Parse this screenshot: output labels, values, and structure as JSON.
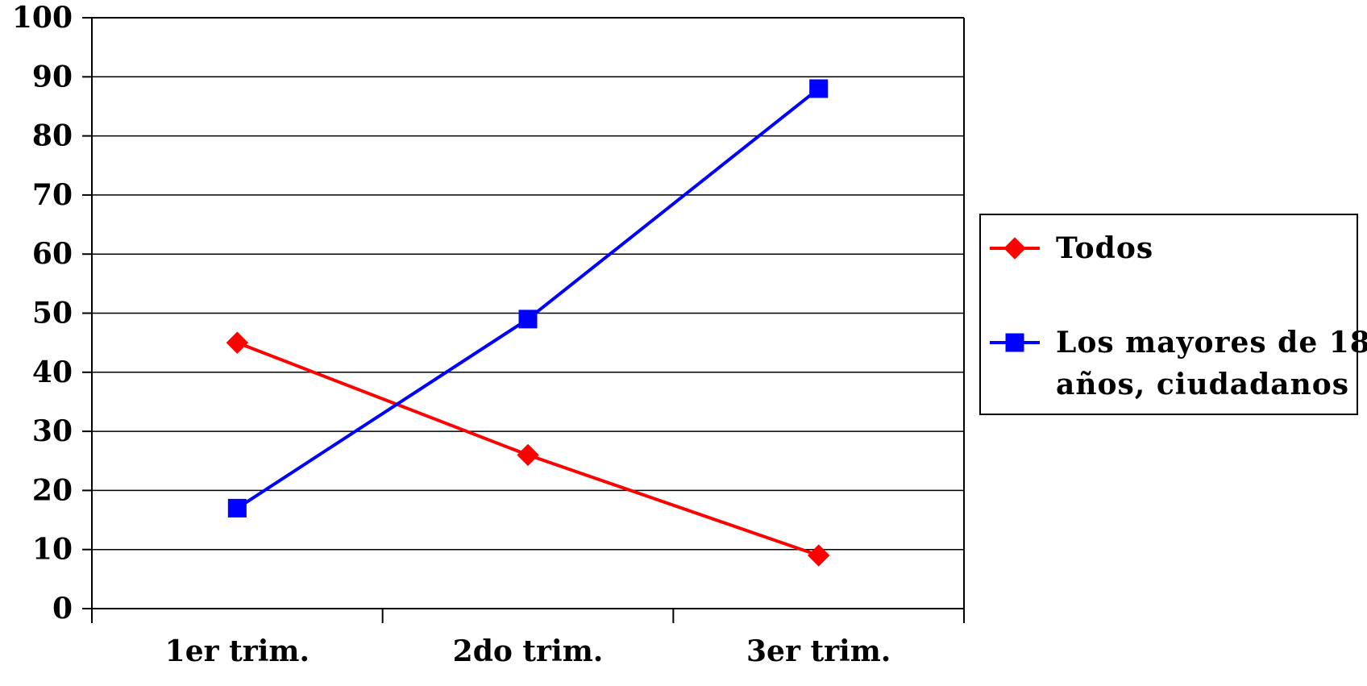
{
  "chart_data": {
    "type": "line",
    "title": "",
    "xlabel": "",
    "ylabel": "",
    "categories": [
      "1er trim.",
      "2do trim.",
      "3er trim."
    ],
    "ylim": [
      0,
      100
    ],
    "yticks": [
      "0",
      "10",
      "20",
      "30",
      "40",
      "50",
      "60",
      "70",
      "80",
      "90",
      "100"
    ],
    "grid": true,
    "legend": "right",
    "series": [
      {
        "name": "Todos",
        "values": [
          45,
          26,
          9
        ],
        "color": "#ff0000",
        "marker": "diamond"
      },
      {
        "name": "Los mayores de 18 años, ciudadanos",
        "values": [
          17,
          49,
          88
        ],
        "color": "#0000ff",
        "marker": "square"
      }
    ],
    "legend_entries": [
      {
        "lines": [
          "Todos"
        ]
      },
      {
        "lines": [
          "Los mayores de 18",
          "años, ciudadanos"
        ]
      }
    ]
  }
}
